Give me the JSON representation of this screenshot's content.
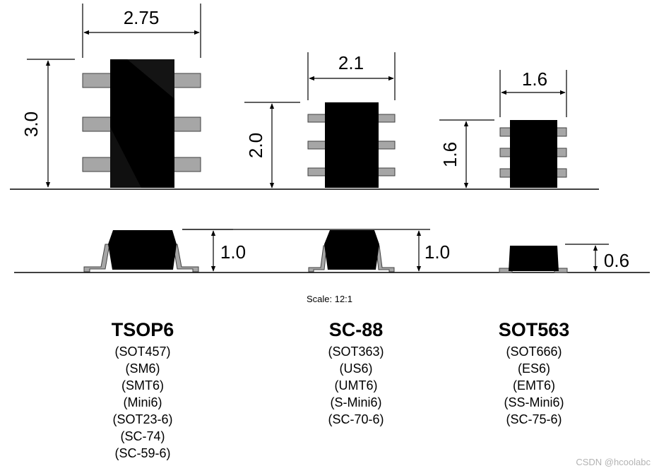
{
  "dimensions": {
    "tsop6_width": "2.75",
    "tsop6_length": "3.0",
    "tsop6_height": "1.0",
    "sc88_width": "2.1",
    "sc88_length": "2.0",
    "sc88_height": "1.0",
    "sot563_width": "1.6",
    "sot563_length": "1.6",
    "sot563_height": "0.6"
  },
  "scale_label": "Scale: 12:1",
  "packages": [
    {
      "name": "TSOP6",
      "aliases": [
        "(SOT457)",
        "(SM6)",
        "(SMT6)",
        "(Mini6)",
        "(SOT23-6)",
        "(SC-74)",
        "(SC-59-6)"
      ]
    },
    {
      "name": "SC-88",
      "aliases": [
        "(SOT363)",
        "(US6)",
        "(UMT6)",
        "(S-Mini6)",
        "(SC-70-6)"
      ]
    },
    {
      "name": "SOT563",
      "aliases": [
        "(SOT666)",
        "(ES6)",
        "(EMT6)",
        "(SS-Mini6)",
        "(SC-75-6)"
      ]
    }
  ],
  "watermark": "CSDN @hcoolabc",
  "colors": {
    "body": "#000000",
    "lead": "#a6a6a6",
    "lead_edge": "#404040",
    "line": "#000000"
  }
}
